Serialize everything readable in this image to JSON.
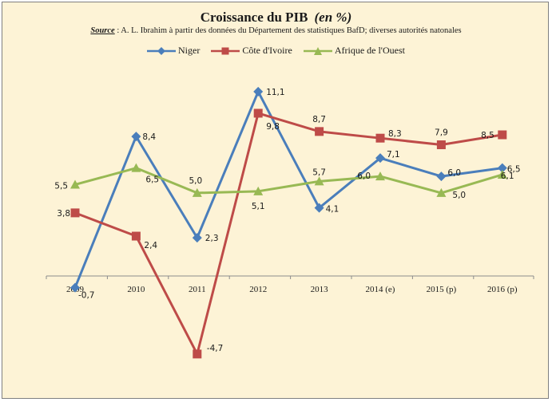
{
  "title": "Croissance du PIB",
  "title_unit": "(en %)",
  "source_label": "Source",
  "source_text": " :  A. L. Ibrahim à partir des données du Département des statistiques BafD; diverses autorités natonales",
  "chart_data": {
    "type": "line",
    "categories": [
      "2009",
      "2010",
      "2011",
      "2012",
      "2013",
      "2014 (e)",
      "2015 (p)",
      "2016 (p)"
    ],
    "ylim": [
      -5,
      12
    ],
    "grid": false,
    "legend_position": "top",
    "series": [
      {
        "name": "Niger",
        "color": "#4a7ebb",
        "marker": "diamond",
        "values": [
          -0.7,
          8.4,
          2.3,
          11.1,
          4.1,
          7.1,
          6.0,
          6.5
        ],
        "labels": [
          "-0,7",
          "8,4",
          "2,3",
          "11,1",
          "4,1",
          "7,1",
          "6,0",
          "6,5"
        ]
      },
      {
        "name": "Côte d'Ivoire",
        "color": "#be4b48",
        "marker": "square",
        "values": [
          3.8,
          2.4,
          -4.7,
          9.8,
          8.7,
          8.3,
          7.9,
          8.5
        ],
        "labels": [
          "3,8",
          "2,4",
          "-4,7",
          "9,8",
          "8,7",
          "8,3",
          "7,9",
          "8,5"
        ]
      },
      {
        "name": "Afrique de l'Ouest",
        "color": "#98b954",
        "marker": "triangle",
        "values": [
          5.5,
          6.5,
          5.0,
          5.1,
          5.7,
          6.0,
          5.0,
          6.1
        ],
        "labels": [
          "5,5",
          "6,5",
          "5,0",
          "5,1",
          "5,7",
          "6,0",
          "5,0",
          "6,1"
        ]
      }
    ]
  }
}
